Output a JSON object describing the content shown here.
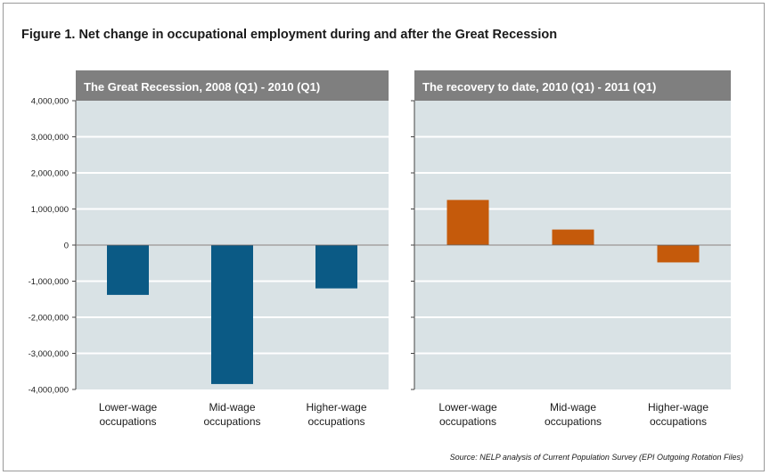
{
  "figure_title": "Figure 1.  Net change in occupational employment during and after the Great Recession",
  "source": "Source: NELP analysis of Current Population Survey (EPI Outgoing Rotation Files)",
  "colors": {
    "panel_header": "#7f7f7f",
    "plot_bg": "#d9e2e5",
    "gridline": "#ffffff",
    "recession_bar": "#0b5a85",
    "recovery_bar": "#c55a0b"
  },
  "chart_data": [
    {
      "type": "bar",
      "title": "The Great Recession, 2008 (Q1) - 2010 (Q1)",
      "categories": [
        [
          "Lower-wage",
          "occupations"
        ],
        [
          "Mid-wage",
          "occupations"
        ],
        [
          "Higher-wage",
          "occupations"
        ]
      ],
      "values": [
        -1380000,
        -3850000,
        -1200000
      ],
      "ylim": [
        -4000000,
        4000000
      ],
      "ytick_labels": [
        "4,000,000",
        "3,000,000",
        "2,000,000",
        "1,000,000",
        "0",
        "-1,000,000",
        "-2,000,000",
        "-3,000,000",
        "-4,000,000"
      ],
      "grid": true,
      "color": "#0b5a85"
    },
    {
      "type": "bar",
      "title": "The recovery to date, 2010 (Q1) - 2011 (Q1)",
      "categories": [
        [
          "Lower-wage",
          "occupations"
        ],
        [
          "Mid-wage",
          "occupations"
        ],
        [
          "Higher-wage",
          "occupations"
        ]
      ],
      "values": [
        1250000,
        430000,
        -480000
      ],
      "ylim": [
        -4000000,
        4000000
      ],
      "grid": true,
      "color": "#c55a0b"
    }
  ]
}
